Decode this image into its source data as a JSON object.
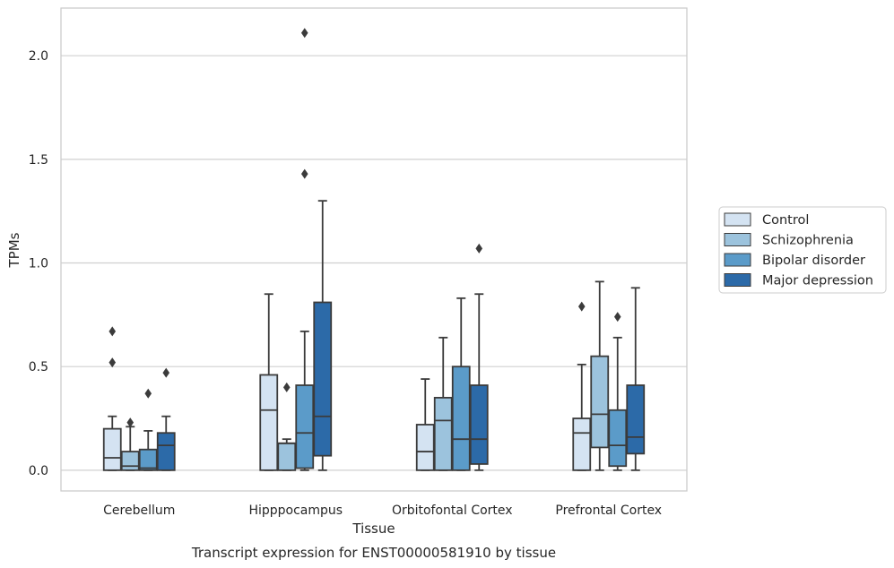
{
  "chart_data": {
    "type": "box",
    "title": "",
    "caption": "Transcript expression for ENST00000581910 by tissue",
    "xlabel": "Tissue",
    "ylabel": "TPMs",
    "ylim": [
      -0.1,
      2.23
    ],
    "yticks": [
      0.0,
      0.5,
      1.0,
      1.5,
      2.0
    ],
    "ytick_labels": [
      "0.0",
      "0.5",
      "1.0",
      "1.5",
      "2.0"
    ],
    "grid": "horizontal",
    "legend_position": "right",
    "categories": [
      "Cerebellum",
      "Hipppocampus",
      "Orbitofontal Cortex",
      "Prefrontal Cortex"
    ],
    "series": [
      {
        "name": "Control",
        "color": "#d4e3f2",
        "boxes": [
          {
            "q1": 0.0,
            "median": 0.06,
            "q3": 0.2,
            "whisker_low": 0.0,
            "whisker_high": 0.26,
            "outliers": [
              0.52,
              0.67
            ]
          },
          {
            "q1": 0.0,
            "median": 0.29,
            "q3": 0.46,
            "whisker_low": 0.0,
            "whisker_high": 0.85,
            "outliers": []
          },
          {
            "q1": 0.0,
            "median": 0.09,
            "q3": 0.22,
            "whisker_low": 0.0,
            "whisker_high": 0.44,
            "outliers": []
          },
          {
            "q1": 0.0,
            "median": 0.18,
            "q3": 0.25,
            "whisker_low": 0.0,
            "whisker_high": 0.51,
            "outliers": [
              0.79
            ]
          }
        ]
      },
      {
        "name": "Schizophrenia",
        "color": "#9cc3dd",
        "boxes": [
          {
            "q1": 0.0,
            "median": 0.02,
            "q3": 0.09,
            "whisker_low": 0.0,
            "whisker_high": 0.21,
            "outliers": [
              0.23
            ]
          },
          {
            "q1": 0.0,
            "median": 0.13,
            "q3": 0.13,
            "whisker_low": 0.0,
            "whisker_high": 0.15,
            "outliers": [
              0.4
            ]
          },
          {
            "q1": 0.0,
            "median": 0.24,
            "q3": 0.35,
            "whisker_low": 0.0,
            "whisker_high": 0.64,
            "outliers": []
          },
          {
            "q1": 0.11,
            "median": 0.27,
            "q3": 0.55,
            "whisker_low": 0.0,
            "whisker_high": 0.91,
            "outliers": []
          }
        ]
      },
      {
        "name": "Bipolar disorder",
        "color": "#5b9bc9",
        "boxes": [
          {
            "q1": 0.0,
            "median": 0.01,
            "q3": 0.1,
            "whisker_low": 0.0,
            "whisker_high": 0.19,
            "outliers": [
              0.37
            ]
          },
          {
            "q1": 0.01,
            "median": 0.18,
            "q3": 0.41,
            "whisker_low": 0.0,
            "whisker_high": 0.67,
            "outliers": [
              1.43,
              2.11
            ]
          },
          {
            "q1": 0.0,
            "median": 0.15,
            "q3": 0.5,
            "whisker_low": 0.0,
            "whisker_high": 0.83,
            "outliers": []
          },
          {
            "q1": 0.02,
            "median": 0.12,
            "q3": 0.29,
            "whisker_low": 0.0,
            "whisker_high": 0.64,
            "outliers": [
              0.74
            ]
          }
        ]
      },
      {
        "name": "Major depression",
        "color": "#2c6aa8",
        "boxes": [
          {
            "q1": 0.0,
            "median": 0.12,
            "q3": 0.18,
            "whisker_low": 0.0,
            "whisker_high": 0.26,
            "outliers": [
              0.47
            ]
          },
          {
            "q1": 0.07,
            "median": 0.26,
            "q3": 0.81,
            "whisker_low": 0.0,
            "whisker_high": 1.3,
            "outliers": []
          },
          {
            "q1": 0.03,
            "median": 0.15,
            "q3": 0.41,
            "whisker_low": 0.0,
            "whisker_high": 0.85,
            "outliers": [
              1.07
            ]
          },
          {
            "q1": 0.08,
            "median": 0.16,
            "q3": 0.41,
            "whisker_low": 0.0,
            "whisker_high": 0.88,
            "outliers": []
          }
        ]
      }
    ]
  }
}
